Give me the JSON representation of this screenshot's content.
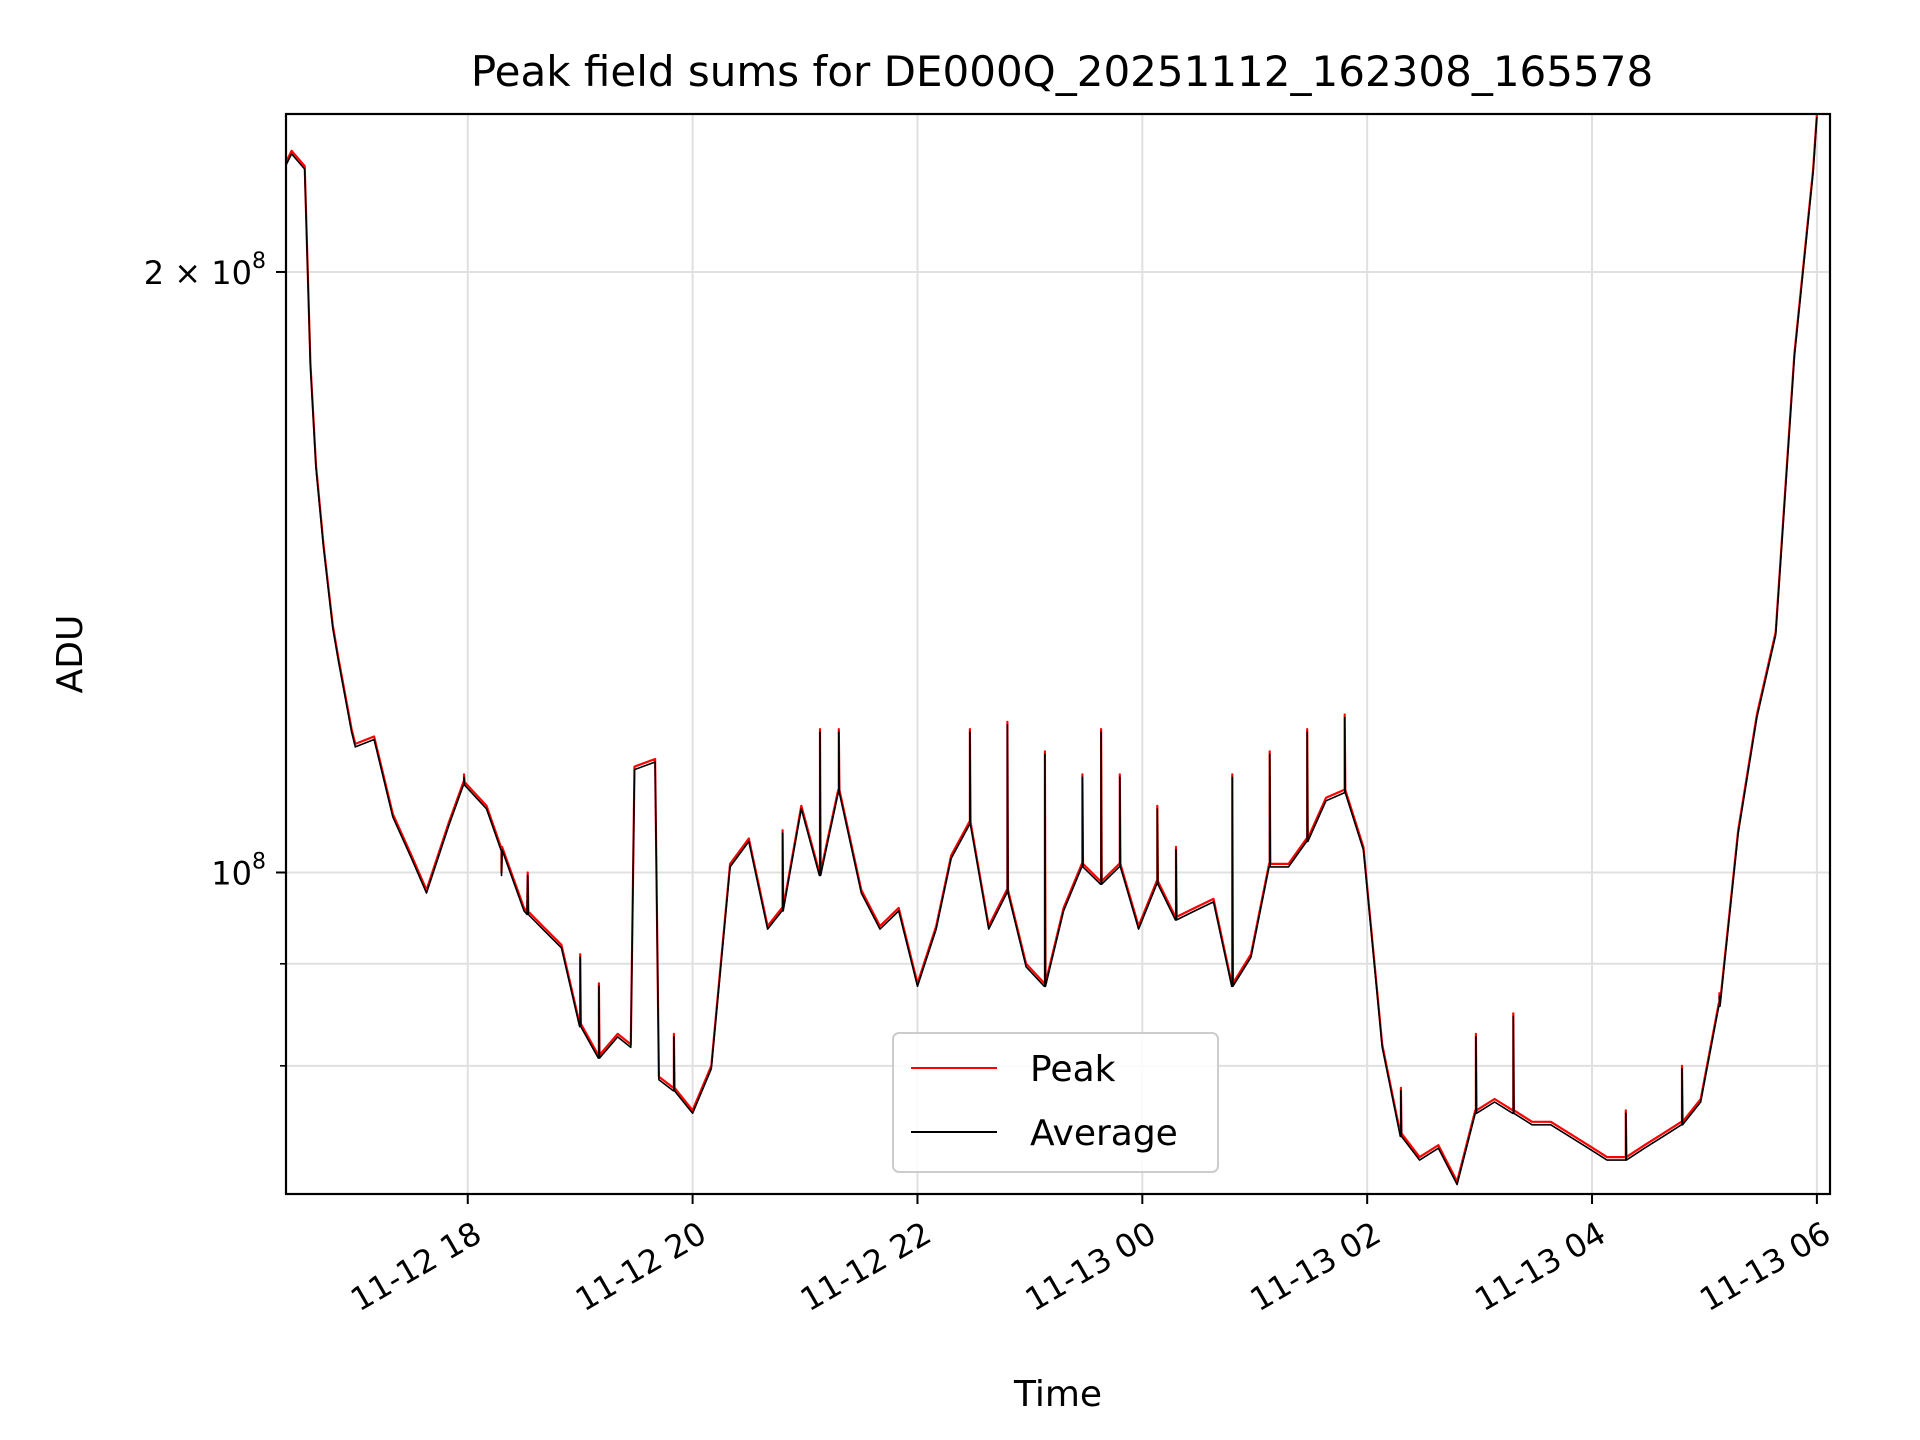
{
  "chart_data": {
    "type": "line",
    "title": "Peak field sums for DE000Q_20251112_162308_165578",
    "xlabel": "Time",
    "ylabel": "ADU",
    "yscale": "log",
    "ylim": [
      69000000,
      240000000
    ],
    "xlim": [
      "2025-11-12 16:23",
      "2025-11-13 06:07"
    ],
    "grid": true,
    "legend": "lower-center",
    "x_ticks": [
      {
        "t": "2025-11-12 18:00",
        "label": "11-12 18"
      },
      {
        "t": "2025-11-12 20:00",
        "label": "11-12 20"
      },
      {
        "t": "2025-11-12 22:00",
        "label": "11-12 22"
      },
      {
        "t": "2025-11-13 00:00",
        "label": "11-13 00"
      },
      {
        "t": "2025-11-13 02:00",
        "label": "11-13 02"
      },
      {
        "t": "2025-11-13 04:00",
        "label": "11-13 04"
      },
      {
        "t": "2025-11-13 06:00",
        "label": "11-13 06"
      }
    ],
    "y_major_ticks": [
      {
        "v": 100000000,
        "base": "10",
        "exp": "8",
        "coef": ""
      },
      {
        "v": 200000000,
        "base": "10",
        "exp": "8",
        "coef": "2 × "
      }
    ],
    "y_minor_ticks": [
      80000000,
      90000000
    ],
    "series": [
      {
        "name": "Peak",
        "color": "#ff0000"
      },
      {
        "name": "Average",
        "color": "#000000"
      }
    ],
    "x": [
      "2025-11-12 16:23",
      "2025-11-12 16:26",
      "2025-11-12 16:33",
      "2025-11-12 16:36",
      "2025-11-12 16:39",
      "2025-11-12 16:43",
      "2025-11-12 16:46",
      "2025-11-12 16:48",
      "2025-11-12 16:51",
      "2025-11-12 16:58",
      "2025-11-12 17:00",
      "2025-11-12 17:10",
      "2025-11-12 17:20",
      "2025-11-12 17:30",
      "2025-11-12 17:38",
      "2025-11-12 17:50",
      "2025-11-12 17:58",
      "2025-11-12 18:10",
      "2025-11-12 18:18",
      "2025-11-12 18:30",
      "2025-11-12 18:40",
      "2025-11-12 18:50",
      "2025-11-12 19:00",
      "2025-11-12 19:10",
      "2025-11-12 19:20",
      "2025-11-12 19:27",
      "2025-11-12 19:29",
      "2025-11-12 19:40",
      "2025-11-12 19:42",
      "2025-11-12 19:50",
      "2025-11-12 20:00",
      "2025-11-12 20:10",
      "2025-11-12 20:20",
      "2025-11-12 20:30",
      "2025-11-12 20:40",
      "2025-11-12 20:48",
      "2025-11-12 20:58",
      "2025-11-12 21:08",
      "2025-11-12 21:18",
      "2025-11-12 21:30",
      "2025-11-12 21:40",
      "2025-11-12 21:50",
      "2025-11-12 22:00",
      "2025-11-12 22:10",
      "2025-11-12 22:18",
      "2025-11-12 22:28",
      "2025-11-12 22:38",
      "2025-11-12 22:48",
      "2025-11-12 22:58",
      "2025-11-12 23:08",
      "2025-11-12 23:18",
      "2025-11-12 23:28",
      "2025-11-12 23:38",
      "2025-11-12 23:48",
      "2025-11-12 23:58",
      "2025-11-13 00:08",
      "2025-11-13 00:18",
      "2025-11-13 00:28",
      "2025-11-13 00:38",
      "2025-11-13 00:48",
      "2025-11-13 00:58",
      "2025-11-13 01:08",
      "2025-11-13 01:18",
      "2025-11-13 01:28",
      "2025-11-13 01:38",
      "2025-11-13 01:48",
      "2025-11-13 01:58",
      "2025-11-13 02:08",
      "2025-11-13 02:18",
      "2025-11-13 02:28",
      "2025-11-13 02:38",
      "2025-11-13 02:48",
      "2025-11-13 02:58",
      "2025-11-13 03:08",
      "2025-11-13 03:18",
      "2025-11-13 03:28",
      "2025-11-13 03:38",
      "2025-11-13 03:48",
      "2025-11-13 03:58",
      "2025-11-13 04:08",
      "2025-11-13 04:18",
      "2025-11-13 04:28",
      "2025-11-13 04:38",
      "2025-11-13 04:48",
      "2025-11-13 04:58",
      "2025-11-13 05:08",
      "2025-11-13 05:18",
      "2025-11-13 05:28",
      "2025-11-13 05:38",
      "2025-11-13 05:48",
      "2025-11-13 05:58",
      "2025-11-13 06:00"
    ],
    "values": [
      227000000,
      230000000,
      226000000,
      180000000,
      160000000,
      146000000,
      138000000,
      133000000,
      128000000,
      118000000,
      116000000,
      117000000,
      107000000,
      102000000,
      98000000,
      106000000,
      111000000,
      108000000,
      103000000,
      96000000,
      94000000,
      92000000,
      84000000,
      81000000,
      83000000,
      82000000,
      113000000,
      114000000,
      79000000,
      78000000,
      76000000,
      80000000,
      101000000,
      104000000,
      94000000,
      96000000,
      108000000,
      100000000,
      110000000,
      98000000,
      94000000,
      96000000,
      88000000,
      94000000,
      102000000,
      106000000,
      94000000,
      98000000,
      90000000,
      88000000,
      96000000,
      101000000,
      99000000,
      101000000,
      94000000,
      99000000,
      95000000,
      96000000,
      97000000,
      88000000,
      91000000,
      101000000,
      101000000,
      104000000,
      109000000,
      110000000,
      103000000,
      82000000,
      74000000,
      72000000,
      73000000,
      70000000,
      76000000,
      77000000,
      76000000,
      75000000,
      75000000,
      74000000,
      73000000,
      72000000,
      72000000,
      73000000,
      74000000,
      75000000,
      77000000,
      86000000,
      105000000,
      120000000,
      132000000,
      182000000,
      225000000,
      240000000
    ],
    "spikes": [
      {
        "t": "2025-11-12 17:58",
        "v": 112000000
      },
      {
        "t": "2025-11-12 18:18",
        "v": 100000000
      },
      {
        "t": "2025-11-12 18:32",
        "v": 100000000
      },
      {
        "t": "2025-11-12 19:00",
        "v": 91000000
      },
      {
        "t": "2025-11-12 19:10",
        "v": 88000000
      },
      {
        "t": "2025-11-12 19:50",
        "v": 83000000
      },
      {
        "t": "2025-11-12 20:48",
        "v": 105000000
      },
      {
        "t": "2025-11-12 21:08",
        "v": 118000000
      },
      {
        "t": "2025-11-12 21:18",
        "v": 118000000
      },
      {
        "t": "2025-11-12 22:28",
        "v": 118000000
      },
      {
        "t": "2025-11-12 22:48",
        "v": 119000000
      },
      {
        "t": "2025-11-12 23:08",
        "v": 115000000
      },
      {
        "t": "2025-11-12 23:28",
        "v": 112000000
      },
      {
        "t": "2025-11-12 23:38",
        "v": 118000000
      },
      {
        "t": "2025-11-12 23:48",
        "v": 112000000
      },
      {
        "t": "2025-11-13 00:08",
        "v": 108000000
      },
      {
        "t": "2025-11-13 00:18",
        "v": 103000000
      },
      {
        "t": "2025-11-13 00:48",
        "v": 112000000
      },
      {
        "t": "2025-11-13 01:08",
        "v": 115000000
      },
      {
        "t": "2025-11-13 01:28",
        "v": 118000000
      },
      {
        "t": "2025-11-13 01:48",
        "v": 120000000
      },
      {
        "t": "2025-11-13 02:18",
        "v": 78000000
      },
      {
        "t": "2025-11-13 02:58",
        "v": 83000000
      },
      {
        "t": "2025-11-13 03:18",
        "v": 85000000
      },
      {
        "t": "2025-11-13 04:18",
        "v": 76000000
      },
      {
        "t": "2025-11-13 04:48",
        "v": 80000000
      },
      {
        "t": "2025-11-13 05:08",
        "v": 87000000
      }
    ]
  }
}
